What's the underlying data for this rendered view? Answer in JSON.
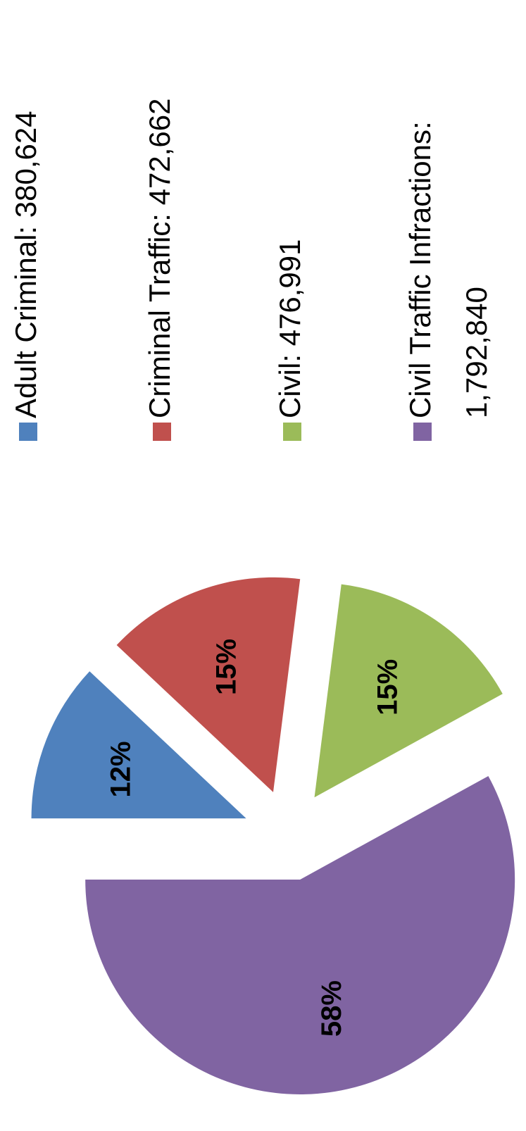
{
  "chart_data": {
    "type": "pie",
    "categories": [
      "Adult Criminal: 380,624",
      "Criminal Traffic: 472,662",
      "Civil: 476,991",
      "Civil Traffic Infractions: 1,792,840"
    ],
    "values": [
      12,
      15,
      15,
      58
    ],
    "value_labels": [
      "12%",
      "15%",
      "15%",
      "58%"
    ],
    "colors": [
      "#4f81bd",
      "#c0504d",
      "#9bbb59",
      "#8064a2"
    ],
    "legend": "right",
    "exploded": true
  }
}
